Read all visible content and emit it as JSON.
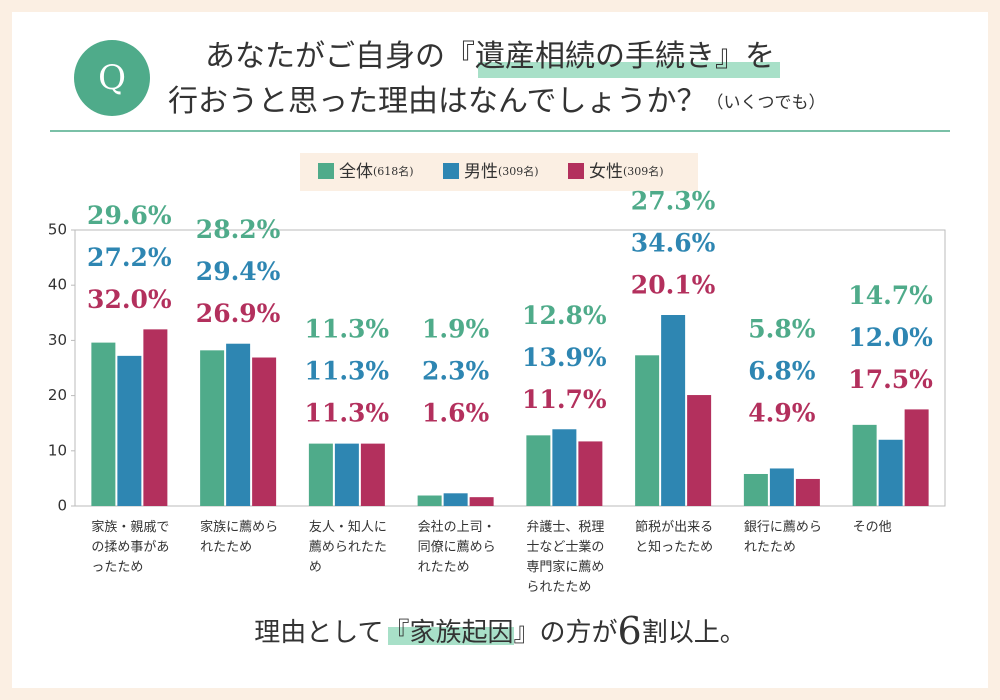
{
  "header": {
    "mark": "Q",
    "line1": [
      "あなたがご自身の『",
      "遺産相続の手続き",
      "』を"
    ],
    "line2": "行おうと思った理由はなんでしょうか？",
    "note": "（いくつでも）"
  },
  "chart_data": {
    "type": "bar",
    "categories": [
      "家族・親戚での揉め事があったため",
      "家族に薦められたため",
      "友人・知人に薦められたため",
      "会社の上司・同僚に薦められたため",
      "弁護士、税理士など士業の専門家に薦められたため",
      "節税が出来ると知ったため",
      "銀行に薦められたため",
      "その他"
    ],
    "series": [
      {
        "name": "全体",
        "sample": "(618名)",
        "color": "#4fab8a",
        "values": [
          29.6,
          28.2,
          11.3,
          1.9,
          12.8,
          27.3,
          5.8,
          14.7
        ],
        "value_labels": [
          "29.6%",
          "28.2%",
          "11.3%",
          "1.9%",
          "12.8%",
          "27.3%",
          "5.8%",
          "14.7%"
        ]
      },
      {
        "name": "男性",
        "sample": "(309名)",
        "color": "#2e86b2",
        "values": [
          27.2,
          29.4,
          11.3,
          2.3,
          13.9,
          34.6,
          6.8,
          12.0
        ],
        "value_labels": [
          "27.2%",
          "29.4%",
          "11.3%",
          "2.3%",
          "13.9%",
          "34.6%",
          "6.8%",
          "12.0%"
        ]
      },
      {
        "name": "女性",
        "sample": "(309名)",
        "color": "#b3305d",
        "values": [
          32.0,
          26.9,
          11.3,
          1.6,
          11.7,
          20.1,
          4.9,
          17.5
        ],
        "value_labels": [
          "32.0%",
          "26.9%",
          "11.3%",
          "1.6%",
          "11.7%",
          "20.1%",
          "4.9%",
          "17.5%"
        ]
      }
    ],
    "ylim": [
      0,
      50
    ],
    "yticks": [
      0,
      10,
      20,
      30,
      40,
      50
    ],
    "grid": false
  },
  "footer": [
    "理由として『",
    "家族起因",
    "』の方が",
    "6",
    "割以上。"
  ]
}
